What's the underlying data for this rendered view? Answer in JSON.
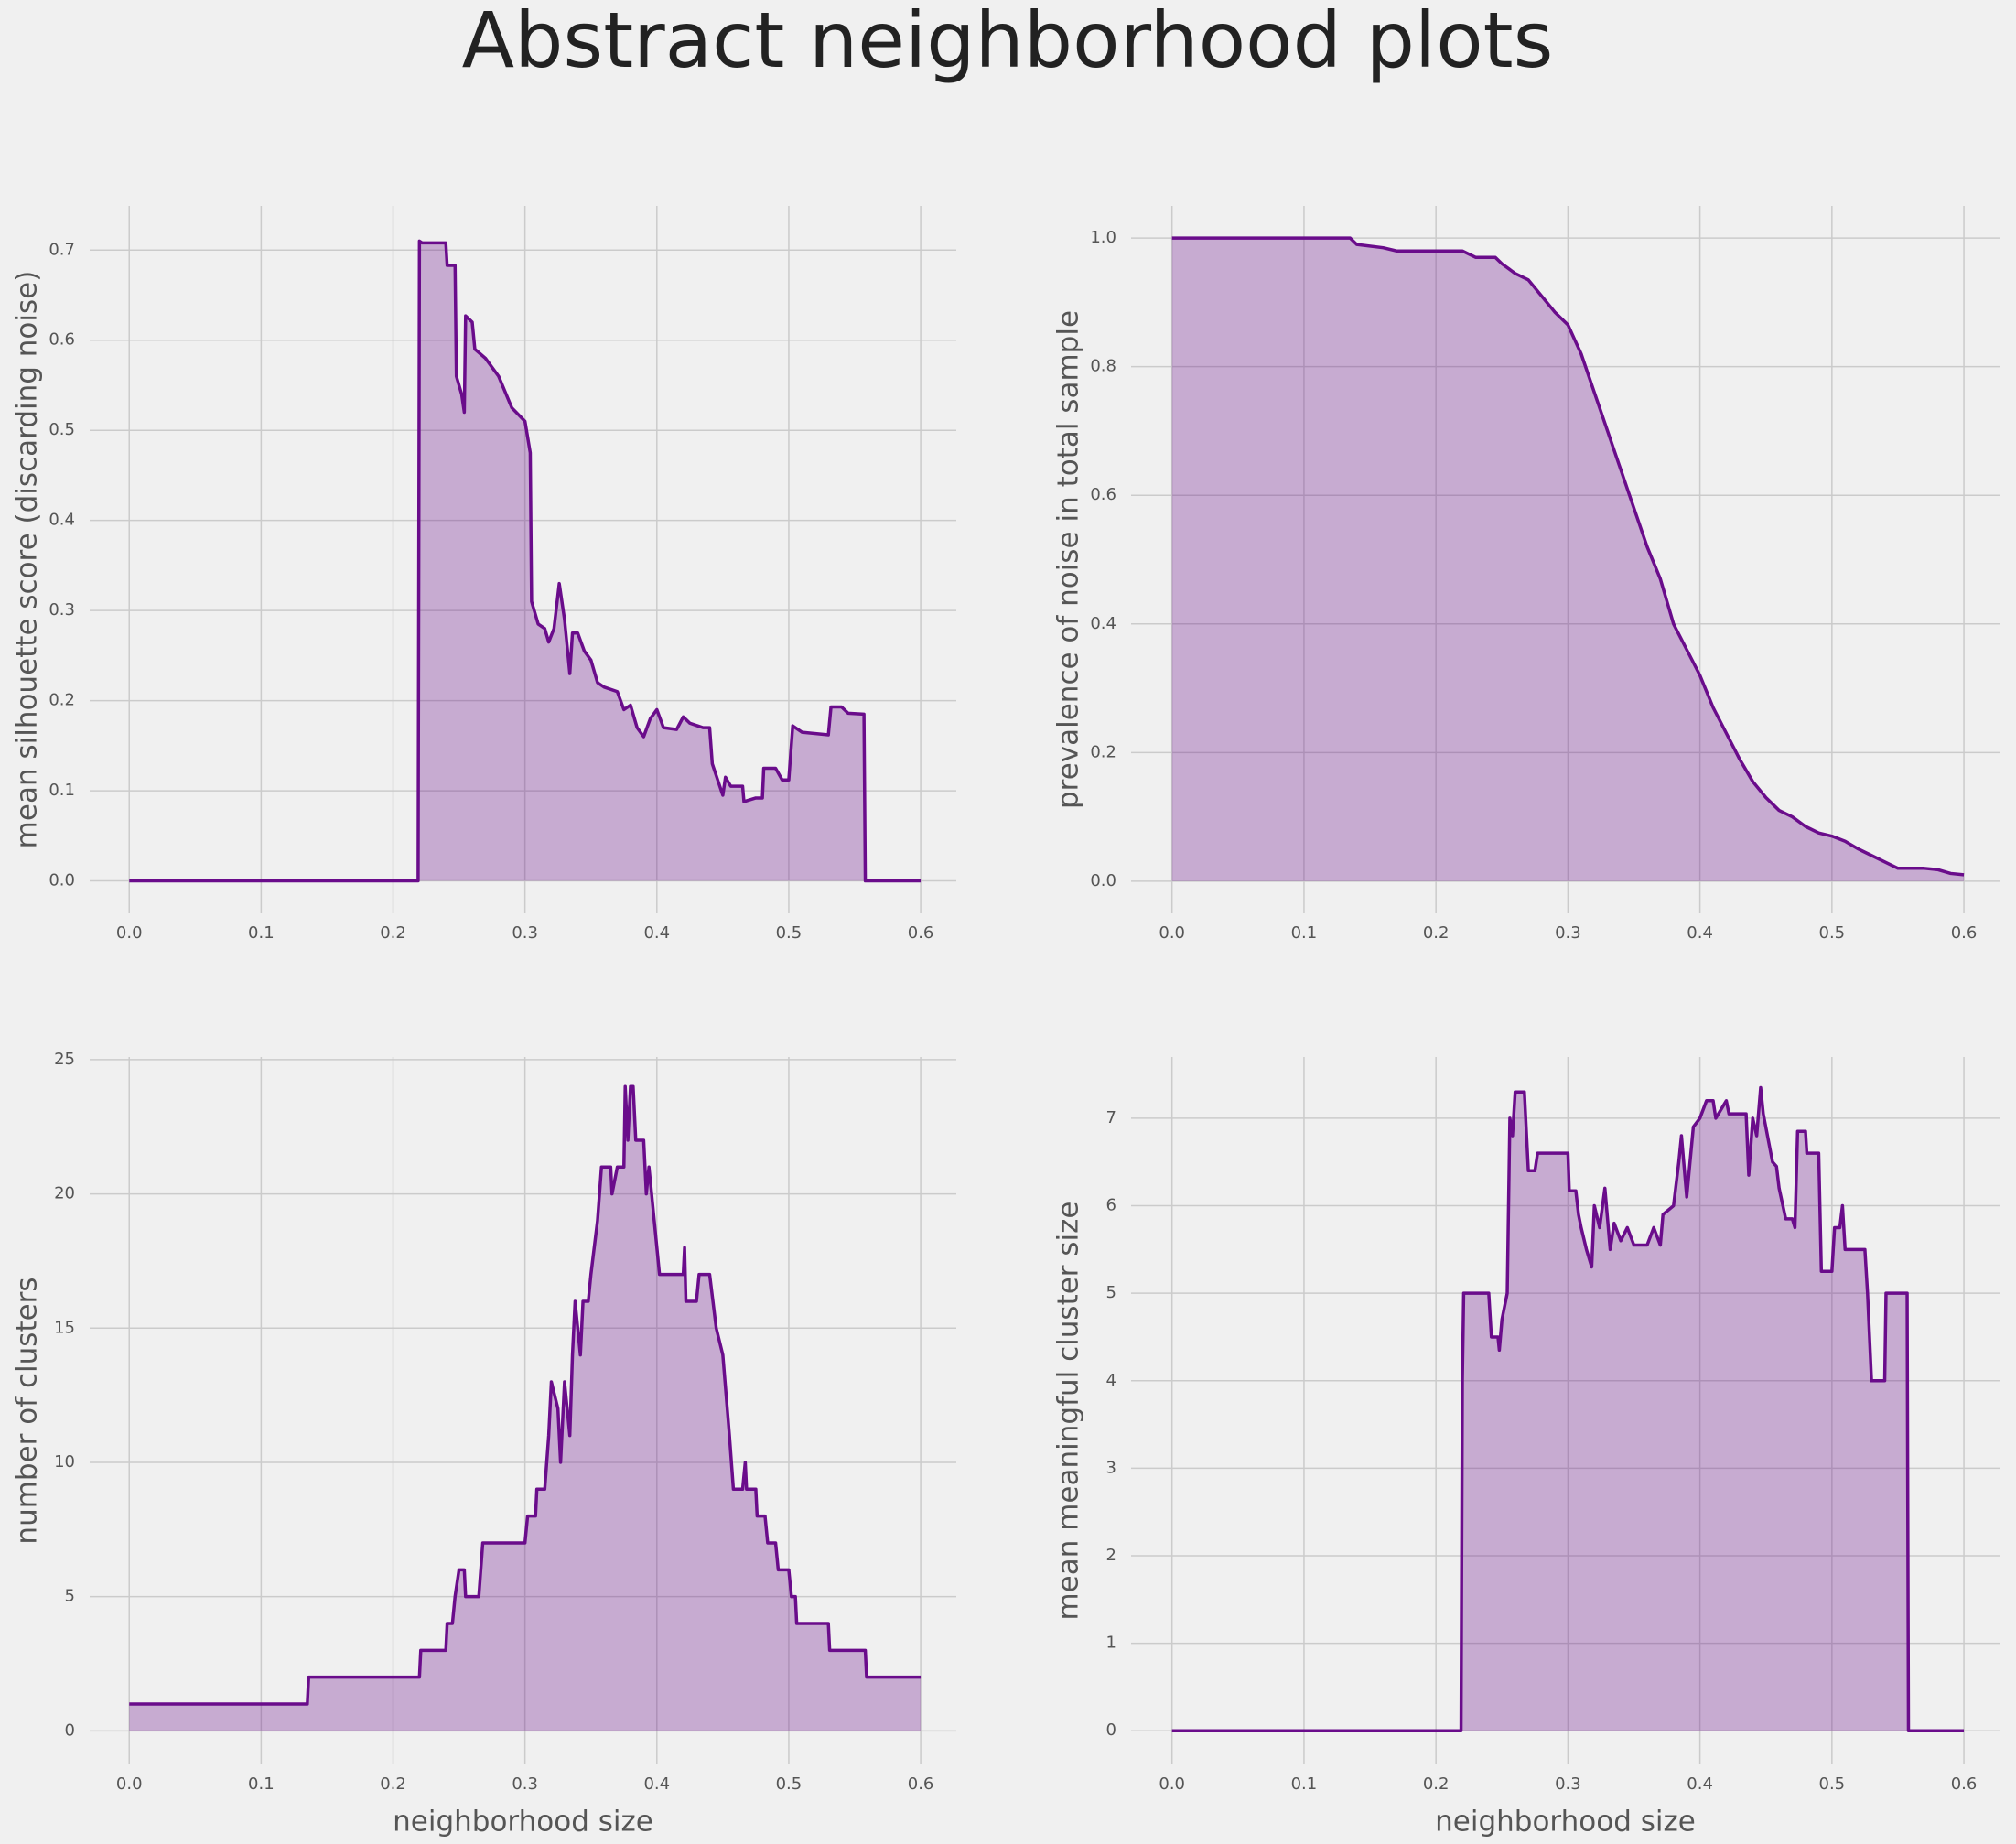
{
  "title": "Abstract neighborhood plots",
  "chart_data": [
    {
      "type": "area",
      "ylabel": "mean silhouette score (discarding noise)",
      "color": "#6a0c8b",
      "grid": true,
      "xlim": [
        -0.03,
        0.627
      ],
      "ylim": [
        -0.036,
        0.749
      ],
      "xticks": [
        {
          "value": 0,
          "label": "0.0"
        },
        0.1,
        0.2,
        0.3,
        0.4,
        0.5,
        0.6
      ],
      "yticks": [
        {
          "value": 0,
          "label": "0.0"
        },
        0.1,
        0.2,
        0.3,
        0.4,
        0.5,
        0.6,
        0.7
      ],
      "x": [
        0,
        0.219,
        0.22,
        0.222,
        0.24,
        0.241,
        0.247,
        0.248,
        0.252,
        0.254,
        0.255,
        0.26,
        0.262,
        0.27,
        0.28,
        0.29,
        0.3,
        0.304,
        0.305,
        0.31,
        0.315,
        0.318,
        0.322,
        0.326,
        0.33,
        0.334,
        0.336,
        0.34,
        0.345,
        0.35,
        0.355,
        0.36,
        0.37,
        0.375,
        0.38,
        0.385,
        0.39,
        0.395,
        0.4,
        0.405,
        0.415,
        0.42,
        0.425,
        0.435,
        0.44,
        0.442,
        0.45,
        0.452,
        0.456,
        0.465,
        0.466,
        0.475,
        0.48,
        0.481,
        0.49,
        0.495,
        0.5,
        0.503,
        0.51,
        0.53,
        0.532,
        0.54,
        0.545,
        0.557,
        0.558,
        0.6
      ],
      "values": [
        0,
        0,
        0.71,
        0.708,
        0.708,
        0.683,
        0.683,
        0.56,
        0.54,
        0.52,
        0.627,
        0.62,
        0.59,
        0.58,
        0.56,
        0.525,
        0.51,
        0.475,
        0.31,
        0.285,
        0.28,
        0.265,
        0.28,
        0.33,
        0.29,
        0.23,
        0.275,
        0.275,
        0.255,
        0.245,
        0.22,
        0.215,
        0.21,
        0.19,
        0.195,
        0.17,
        0.16,
        0.18,
        0.19,
        0.17,
        0.168,
        0.182,
        0.175,
        0.17,
        0.17,
        0.13,
        0.095,
        0.115,
        0.105,
        0.105,
        0.088,
        0.092,
        0.092,
        0.125,
        0.125,
        0.112,
        0.112,
        0.172,
        0.165,
        0.162,
        0.193,
        0.193,
        0.186,
        0.185,
        0,
        0
      ]
    },
    {
      "type": "area",
      "ylabel": "prevalence of noise in total sample",
      "color": "#6a0c8b",
      "grid": true,
      "xlim": [
        -0.031,
        0.627
      ],
      "ylim": [
        -0.05,
        1.05
      ],
      "xticks": [
        {
          "value": 0,
          "label": "0.0"
        },
        0.1,
        0.2,
        0.3,
        0.4,
        0.5,
        0.6
      ],
      "yticks": [
        {
          "value": 0,
          "label": "0.0"
        },
        0.2,
        0.4,
        0.6,
        0.8,
        {
          "value": 1,
          "label": "1.0"
        }
      ],
      "x": [
        0,
        0.135,
        0.14,
        0.16,
        0.17,
        0.22,
        0.23,
        0.245,
        0.25,
        0.26,
        0.27,
        0.28,
        0.29,
        0.3,
        0.31,
        0.32,
        0.33,
        0.34,
        0.35,
        0.36,
        0.37,
        0.38,
        0.39,
        0.4,
        0.41,
        0.42,
        0.43,
        0.44,
        0.45,
        0.46,
        0.47,
        0.48,
        0.49,
        0.5,
        0.51,
        0.52,
        0.53,
        0.54,
        0.55,
        0.57,
        0.58,
        0.59,
        0.6
      ],
      "values": [
        1,
        1,
        0.99,
        0.985,
        0.98,
        0.98,
        0.97,
        0.97,
        0.96,
        0.945,
        0.935,
        0.91,
        0.885,
        0.865,
        0.82,
        0.76,
        0.7,
        0.64,
        0.58,
        0.52,
        0.47,
        0.4,
        0.36,
        0.32,
        0.27,
        0.23,
        0.19,
        0.155,
        0.13,
        0.11,
        0.1,
        0.085,
        0.075,
        0.07,
        0.062,
        0.05,
        0.04,
        0.03,
        0.02,
        0.02,
        0.018,
        0.012,
        0.01
      ]
    },
    {
      "type": "area",
      "xlabel": "neighborhood size",
      "ylabel": "number of clusters",
      "color": "#6a0c8b",
      "grid": true,
      "xlim": [
        -0.03,
        0.627
      ],
      "ylim": [
        -1.25,
        25.1
      ],
      "xticks": [
        {
          "value": 0,
          "label": "0.0"
        },
        0.1,
        0.2,
        0.3,
        0.4,
        0.5,
        0.6
      ],
      "yticks": [
        0,
        5,
        10,
        15,
        20,
        25
      ],
      "x": [
        0,
        0.135,
        0.136,
        0.22,
        0.221,
        0.24,
        0.241,
        0.245,
        0.247,
        0.25,
        0.254,
        0.255,
        0.265,
        0.268,
        0.3,
        0.302,
        0.308,
        0.309,
        0.315,
        0.318,
        0.32,
        0.325,
        0.327,
        0.33,
        0.334,
        0.336,
        0.338,
        0.34,
        0.342,
        0.344,
        0.348,
        0.35,
        0.355,
        0.358,
        0.365,
        0.366,
        0.37,
        0.375,
        0.376,
        0.378,
        0.38,
        0.382,
        0.384,
        0.39,
        0.392,
        0.394,
        0.396,
        0.4,
        0.402,
        0.42,
        0.421,
        0.422,
        0.43,
        0.432,
        0.44,
        0.445,
        0.45,
        0.455,
        0.458,
        0.465,
        0.467,
        0.468,
        0.475,
        0.476,
        0.482,
        0.484,
        0.49,
        0.492,
        0.5,
        0.502,
        0.505,
        0.506,
        0.53,
        0.531,
        0.558,
        0.559,
        0.6
      ],
      "values": [
        1,
        1,
        2,
        2,
        3,
        3,
        4,
        4,
        5,
        6,
        6,
        5,
        5,
        7,
        7,
        8,
        8,
        9,
        9,
        11,
        13,
        12,
        10,
        13,
        11,
        14,
        16,
        15,
        14,
        16,
        16,
        17,
        19,
        21,
        21,
        20,
        21,
        21,
        24,
        22,
        24,
        24,
        22,
        22,
        20,
        21,
        20,
        18,
        17,
        17,
        18,
        16,
        16,
        17,
        17,
        15,
        14,
        11,
        9,
        9,
        10,
        9,
        9,
        8,
        8,
        7,
        7,
        6,
        6,
        5,
        5,
        4,
        4,
        3,
        3,
        2,
        2
      ]
    },
    {
      "type": "area",
      "xlabel": "neighborhood size",
      "ylabel": "mean meaningful cluster size",
      "color": "#6a0c8b",
      "grid": true,
      "xlim": [
        -0.031,
        0.627
      ],
      "ylim": [
        -0.385,
        7.7
      ],
      "xticks": [
        {
          "value": 0,
          "label": "0.0"
        },
        0.1,
        0.2,
        0.3,
        0.4,
        0.5,
        0.6
      ],
      "yticks": [
        0,
        1,
        2,
        3,
        4,
        5,
        6,
        7
      ],
      "x": [
        0,
        0.219,
        0.22,
        0.221,
        0.24,
        0.242,
        0.247,
        0.248,
        0.25,
        0.254,
        0.256,
        0.258,
        0.26,
        0.267,
        0.27,
        0.275,
        0.277,
        0.3,
        0.301,
        0.306,
        0.308,
        0.31,
        0.314,
        0.318,
        0.32,
        0.324,
        0.328,
        0.332,
        0.335,
        0.34,
        0.345,
        0.35,
        0.36,
        0.365,
        0.37,
        0.372,
        0.38,
        0.384,
        0.386,
        0.39,
        0.395,
        0.4,
        0.405,
        0.41,
        0.412,
        0.42,
        0.422,
        0.435,
        0.437,
        0.44,
        0.443,
        0.446,
        0.448,
        0.455,
        0.458,
        0.46,
        0.465,
        0.47,
        0.472,
        0.474,
        0.48,
        0.481,
        0.49,
        0.492,
        0.5,
        0.502,
        0.506,
        0.508,
        0.51,
        0.518,
        0.525,
        0.527,
        0.53,
        0.54,
        0.541,
        0.557,
        0.558,
        0.6
      ],
      "values": [
        0,
        0,
        4,
        5,
        5,
        4.5,
        4.5,
        4.35,
        4.7,
        5,
        7,
        6.8,
        7.3,
        7.3,
        6.4,
        6.4,
        6.6,
        6.6,
        6.17,
        6.17,
        5.9,
        5.75,
        5.5,
        5.3,
        6,
        5.75,
        6.2,
        5.5,
        5.8,
        5.6,
        5.75,
        5.55,
        5.55,
        5.75,
        5.55,
        5.9,
        6,
        6.5,
        6.8,
        6.1,
        6.9,
        7,
        7.2,
        7.2,
        7,
        7.2,
        7.05,
        7.05,
        6.35,
        7,
        6.8,
        7.35,
        7.05,
        6.5,
        6.45,
        6.2,
        5.85,
        5.85,
        5.75,
        6.85,
        6.85,
        6.6,
        6.6,
        5.25,
        5.25,
        5.75,
        5.75,
        6,
        5.5,
        5.5,
        5.5,
        5,
        4,
        4,
        5,
        5,
        0,
        0
      ]
    }
  ]
}
